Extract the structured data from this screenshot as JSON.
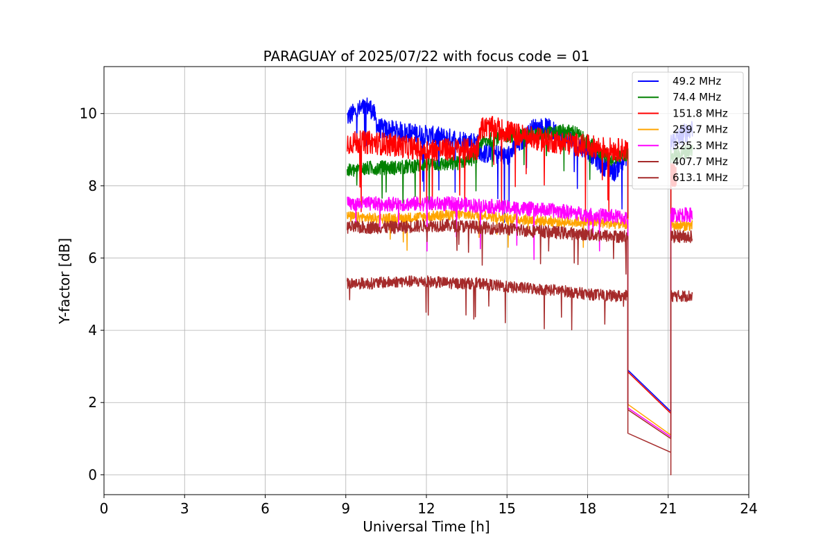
{
  "chart_data": {
    "type": "line",
    "title": "PARAGUAY of 2025/07/22 with focus code = 01",
    "xlabel": "Universal Time [h]",
    "ylabel": "Y-factor [dB]",
    "xlim": [
      0,
      24
    ],
    "ylim": [
      -0.55,
      11.3
    ],
    "xticks": [
      0,
      3,
      6,
      9,
      12,
      15,
      18,
      21,
      24
    ],
    "yticks": [
      0,
      2,
      4,
      6,
      8,
      10
    ],
    "grid": true,
    "legend_position": "top-right",
    "gap": {
      "start": 19.5,
      "end": 21.1
    },
    "series": [
      {
        "name": "49.2 MHz",
        "color": "#0000ff",
        "noise": 0.35,
        "x": [
          9.05,
          9.5,
          9.8,
          10.0,
          10.2,
          11.0,
          12.0,
          13.0,
          13.9,
          14.0,
          14.5,
          15.0,
          15.5,
          16.0,
          16.5,
          17.0,
          17.5,
          18.0,
          18.5,
          19.0,
          19.5
        ],
        "y": [
          9.9,
          10.1,
          10.2,
          10.1,
          9.6,
          9.5,
          9.4,
          9.3,
          9.2,
          8.9,
          8.9,
          8.8,
          9.2,
          9.6,
          9.6,
          9.4,
          9.2,
          9.0,
          8.6,
          8.4,
          8.9
        ],
        "gap_line": [
          2.9,
          1.75
        ],
        "after_x": [
          21.1,
          21.9
        ],
        "after_y": [
          9.2,
          9.6
        ]
      },
      {
        "name": "74.4 MHz",
        "color": "#008000",
        "noise": 0.25,
        "x": [
          9.05,
          10.0,
          11.0,
          12.0,
          13.0,
          13.9,
          14.0,
          15.0,
          16.0,
          17.0,
          17.5,
          18.0,
          18.5,
          19.0,
          19.5
        ],
        "y": [
          8.4,
          8.5,
          8.5,
          8.6,
          8.6,
          8.8,
          9.2,
          9.4,
          9.4,
          9.5,
          9.5,
          9.2,
          8.9,
          8.7,
          8.9
        ],
        "gap_line": [
          2.85,
          1.7
        ],
        "after_x": [
          21.1,
          21.9
        ],
        "after_y": [
          8.8,
          9.0
        ]
      },
      {
        "name": "151.8 MHz",
        "color": "#ff0000",
        "noise": 0.4,
        "x": [
          9.05,
          10.0,
          11.0,
          12.0,
          13.0,
          13.9,
          14.0,
          14.5,
          15.0,
          15.5,
          16.0,
          17.0,
          18.0,
          19.0,
          19.5
        ],
        "y": [
          9.2,
          9.2,
          9.1,
          9.0,
          9.0,
          9.0,
          9.6,
          9.6,
          9.5,
          9.4,
          9.3,
          9.2,
          9.1,
          9.0,
          9.0
        ],
        "gap_line": [
          2.85,
          1.7
        ],
        "after_x": [
          21.1,
          21.3
        ],
        "after_y": [
          8.3,
          8.3
        ]
      },
      {
        "name": "259.7 MHz",
        "color": "#ffa500",
        "noise": 0.18,
        "x": [
          9.05,
          10.0,
          11.0,
          12.0,
          13.0,
          14.0,
          15.0,
          16.0,
          17.0,
          18.0,
          19.0,
          19.5
        ],
        "y": [
          7.15,
          7.1,
          7.1,
          7.15,
          7.2,
          7.2,
          7.1,
          7.05,
          7.0,
          7.0,
          6.95,
          6.95
        ],
        "gap_line": [
          1.95,
          1.1
        ],
        "after_x": [
          21.1,
          21.9
        ],
        "after_y": [
          6.9,
          6.9
        ]
      },
      {
        "name": "325.3 MHz",
        "color": "#ff00ff",
        "noise": 0.25,
        "x": [
          9.05,
          10.0,
          11.0,
          12.0,
          13.0,
          14.0,
          15.0,
          16.0,
          17.0,
          18.0,
          19.0,
          19.5
        ],
        "y": [
          7.5,
          7.5,
          7.5,
          7.5,
          7.5,
          7.45,
          7.4,
          7.35,
          7.3,
          7.2,
          7.15,
          7.1
        ],
        "gap_line": [
          1.85,
          1.05
        ],
        "after_x": [
          21.1,
          21.9
        ],
        "after_y": [
          7.2,
          7.2
        ]
      },
      {
        "name": "407.7 MHz",
        "color": "#a52a2a",
        "noise": 0.22,
        "x": [
          9.05,
          10.0,
          11.0,
          12.0,
          13.0,
          14.0,
          15.0,
          16.0,
          17.0,
          18.0,
          19.0,
          19.5
        ],
        "y": [
          6.85,
          6.85,
          6.85,
          6.9,
          6.9,
          6.85,
          6.8,
          6.75,
          6.7,
          6.65,
          6.6,
          6.6
        ],
        "gap_line": [
          1.8,
          1.0
        ],
        "after_x": [
          21.1,
          21.9
        ],
        "after_y": [
          6.6,
          6.6
        ]
      },
      {
        "name": "613.1 MHz",
        "color": "#a52a2a",
        "noise": 0.2,
        "x": [
          9.05,
          10.0,
          11.0,
          12.0,
          13.0,
          14.0,
          15.0,
          16.0,
          17.0,
          18.0,
          19.0,
          19.5
        ],
        "y": [
          5.3,
          5.3,
          5.35,
          5.35,
          5.3,
          5.3,
          5.2,
          5.15,
          5.1,
          5.0,
          4.95,
          4.95
        ],
        "gap_line": [
          1.15,
          0.62
        ],
        "after_x": [
          21.1,
          21.9
        ],
        "after_y": [
          4.95,
          4.95
        ]
      }
    ]
  }
}
